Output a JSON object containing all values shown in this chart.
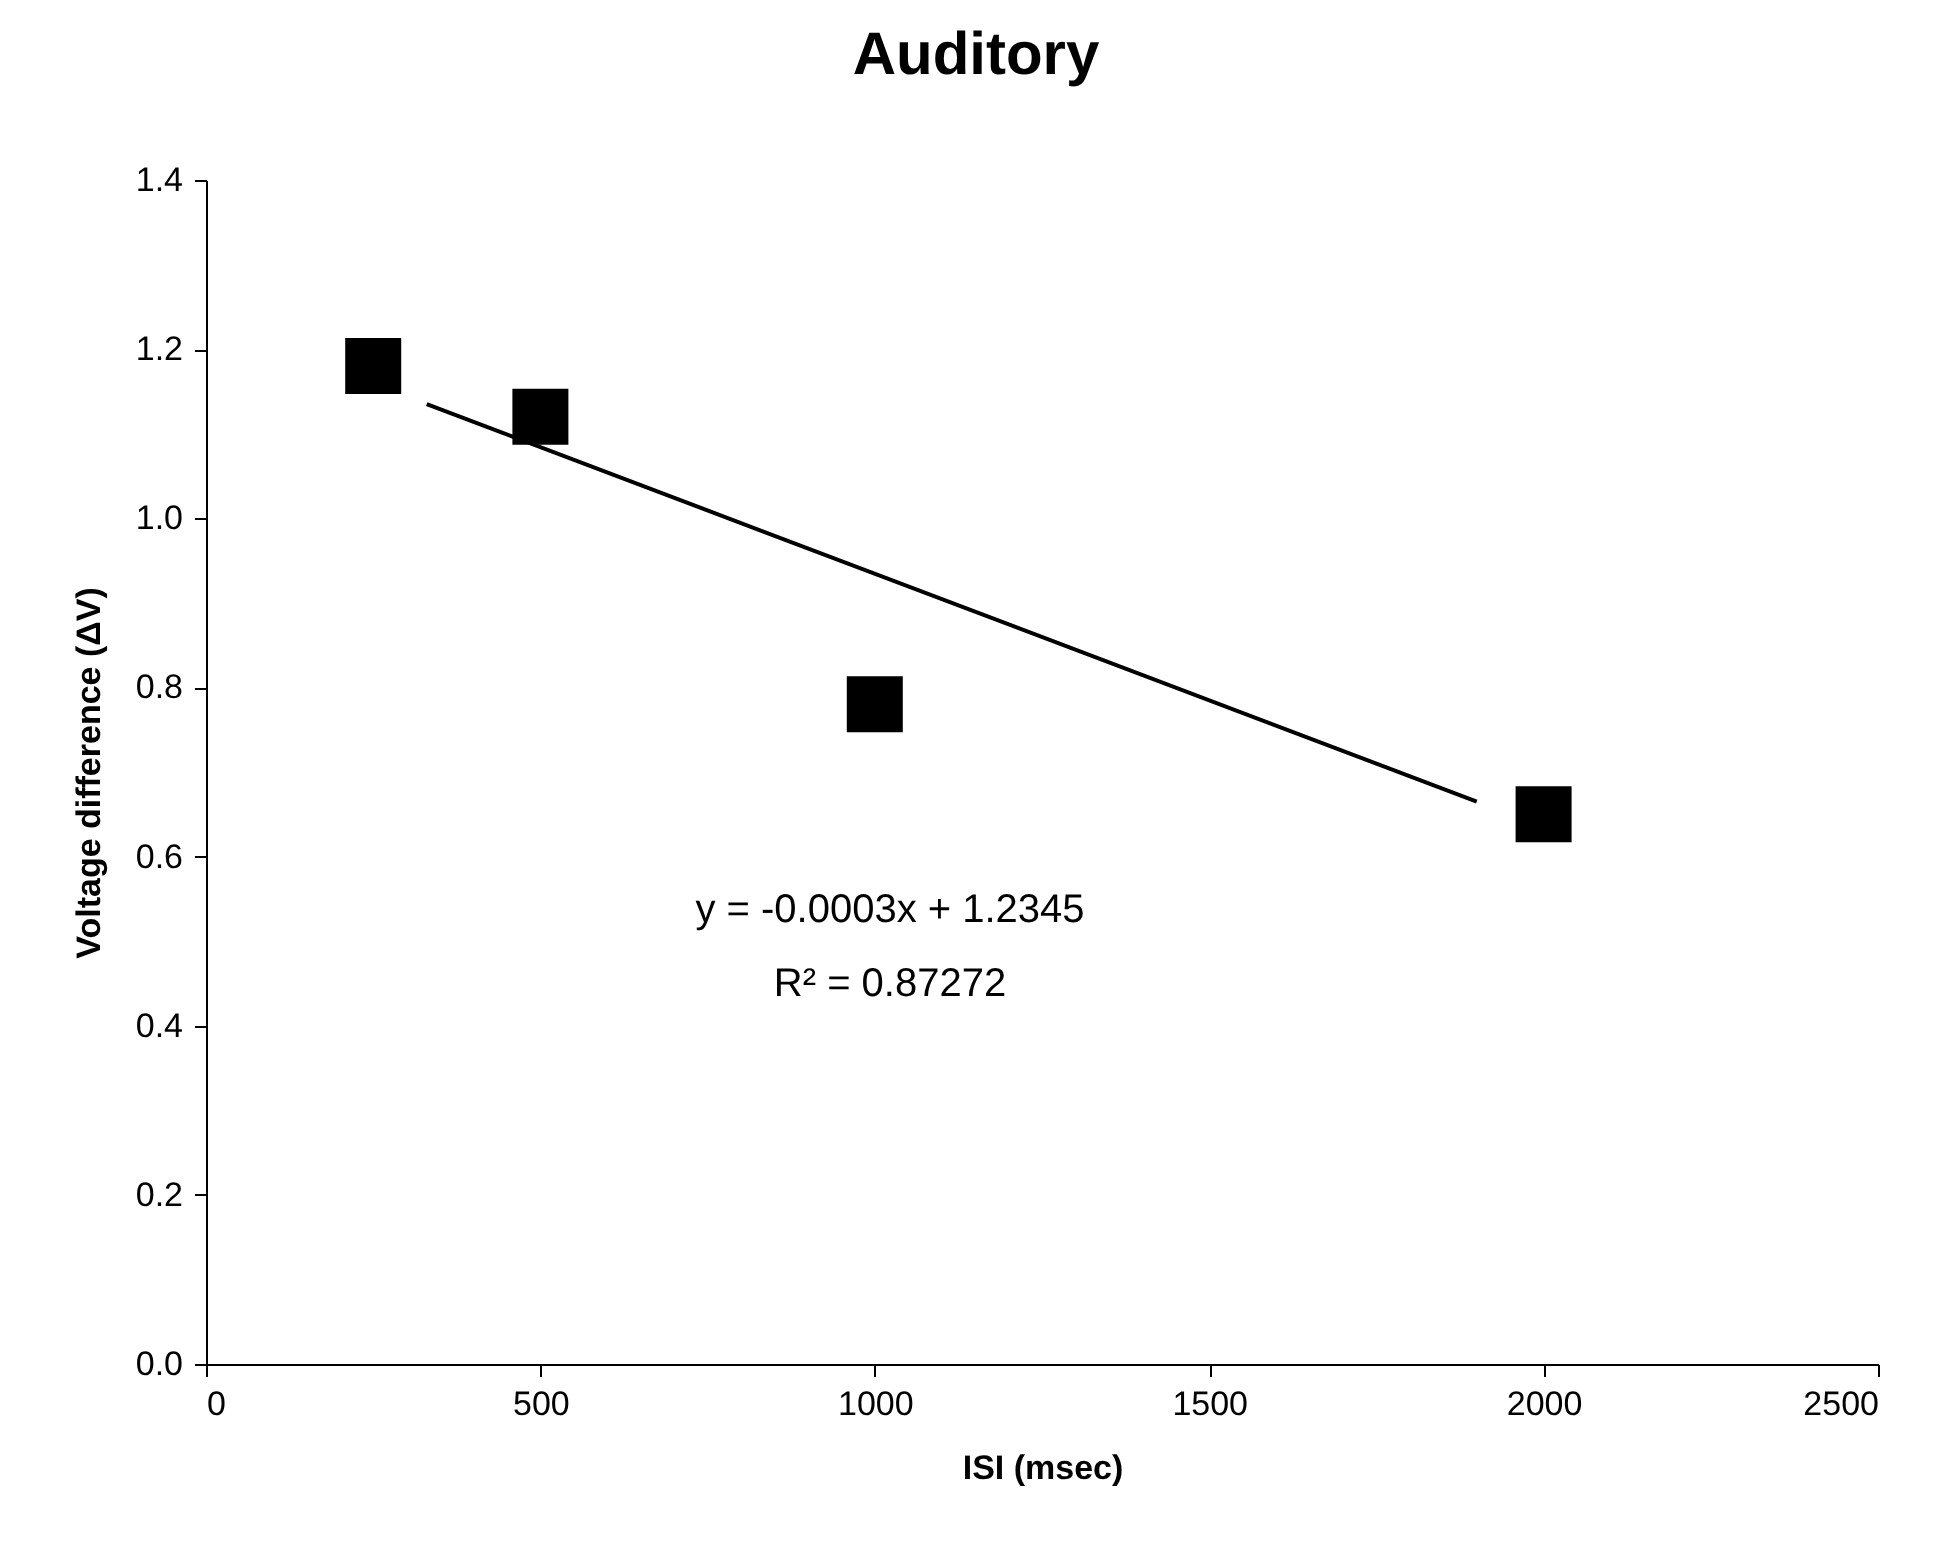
{
  "chart_data": {
    "type": "scatter",
    "title": "Auditory",
    "xlabel": "ISI (msec)",
    "ylabel": "Voltage difference  (ΔV)",
    "grid": false,
    "series": [
      {
        "type": "line",
        "color": "#000000",
        "x": [
          330,
          1900
        ],
        "values": [
          1.135,
          0.665
        ]
      },
      {
        "color": "#000000",
        "marker": "square",
        "x": [
          250,
          500,
          1000,
          2000
        ],
        "values": [
          1.18,
          1.12,
          0.78,
          0.65
        ]
      }
    ],
    "annotations": [
      "y = -0.0003x + 1.2345",
      "R² = 0.87272"
    ],
    "xlim": [
      0,
      2500
    ],
    "xticks": [
      0,
      500,
      1000,
      1500,
      2000,
      2500
    ],
    "ylim": [
      0,
      1.4
    ],
    "yticks": [
      {
        "value": 0,
        "label": "0.0"
      },
      {
        "value": 0.2,
        "label": "0.2"
      },
      {
        "value": 0.4,
        "label": "0.4"
      },
      {
        "value": 0.6,
        "label": "0.6"
      },
      {
        "value": 0.8,
        "label": "0.8"
      },
      {
        "value": 1,
        "label": "1.0"
      },
      {
        "value": 1.2,
        "label": "1.2"
      },
      {
        "value": 1.4,
        "label": "1.4"
      }
    ]
  }
}
